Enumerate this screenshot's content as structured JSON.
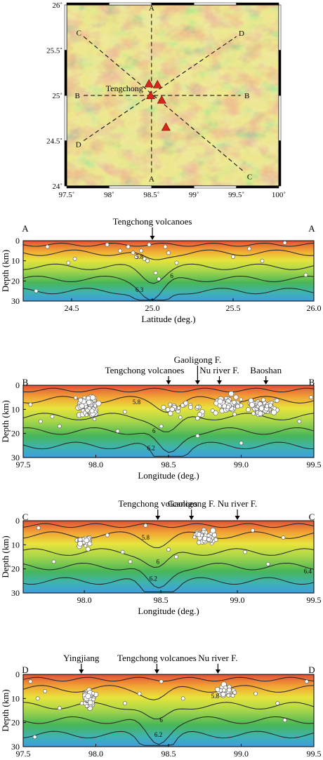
{
  "chart_data": [
    {
      "type": "map",
      "xlim": [
        97.5,
        100
      ],
      "ylim": [
        24,
        26
      ],
      "x_ticks": [
        "97.5˚",
        "98˚",
        "98.5˚",
        "99˚",
        "99.5˚",
        "100˚"
      ],
      "y_ticks": [
        "24˚",
        "24.5˚",
        "25˚",
        "25.5˚",
        "26˚"
      ],
      "place_label": "Tengchong",
      "volcanoes": [
        {
          "lon": 98.47,
          "lat": 25.13
        },
        {
          "lon": 98.57,
          "lat": 25.12
        },
        {
          "lon": 98.49,
          "lat": 25.0
        },
        {
          "lon": 98.62,
          "lat": 24.95
        },
        {
          "lon": 98.67,
          "lat": 24.65
        }
      ],
      "profiles": [
        {
          "start_label": "A",
          "end_label": "A",
          "start": [
            98.5,
            24.15
          ],
          "end": [
            98.5,
            25.9
          ]
        },
        {
          "start_label": "B",
          "end_label": "B",
          "start": [
            97.7,
            25.0
          ],
          "end": [
            99.55,
            25.0
          ]
        },
        {
          "start_label": "C",
          "end_label": "C",
          "start": [
            97.7,
            25.65
          ],
          "end": [
            99.6,
            24.15
          ]
        },
        {
          "start_label": "D",
          "end_label": "D",
          "start": [
            97.7,
            24.5
          ],
          "end": [
            99.5,
            25.65
          ]
        }
      ]
    },
    {
      "type": "heatmap",
      "profile": "A",
      "left_label": "A",
      "right_label": "A",
      "xlabel": "Latitude (deg.)",
      "ylabel": "Depth (km)",
      "xlim": [
        24.2,
        26.0
      ],
      "ylim": [
        0,
        30
      ],
      "x_ticks": [
        "24.5",
        "25.0",
        "25.5",
        "26.0"
      ],
      "x_tick_values": [
        24.5,
        25.0,
        25.5,
        26.0
      ],
      "y_ticks": [
        "0",
        "10",
        "20",
        "30"
      ],
      "y_tick_values": [
        0,
        10,
        20,
        30
      ],
      "contour_labels": [
        {
          "text": "5.8",
          "x": 24.92,
          "y": 8
        },
        {
          "text": "6",
          "x": 25.12,
          "y": 17.5
        },
        {
          "text": "6.3",
          "x": 24.92,
          "y": 24.5
        }
      ],
      "annotations": [
        {
          "text": "Tengchong volcanoes",
          "x": 25.0
        }
      ],
      "earthquakes": [
        {
          "x": 24.28,
          "y": 25
        },
        {
          "x": 24.35,
          "y": 3
        },
        {
          "x": 24.48,
          "y": 11
        },
        {
          "x": 24.52,
          "y": 9
        },
        {
          "x": 24.72,
          "y": 2
        },
        {
          "x": 24.8,
          "y": 5
        },
        {
          "x": 24.85,
          "y": 3
        },
        {
          "x": 24.88,
          "y": 6
        },
        {
          "x": 24.9,
          "y": 8
        },
        {
          "x": 24.93,
          "y": 5
        },
        {
          "x": 24.95,
          "y": 9
        },
        {
          "x": 24.97,
          "y": 10
        },
        {
          "x": 24.98,
          "y": 2
        },
        {
          "x": 25.02,
          "y": 16
        },
        {
          "x": 25.04,
          "y": 19
        },
        {
          "x": 25.08,
          "y": 3
        },
        {
          "x": 25.1,
          "y": 6
        },
        {
          "x": 25.15,
          "y": 11
        },
        {
          "x": 25.5,
          "y": 8
        },
        {
          "x": 25.6,
          "y": 4
        },
        {
          "x": 25.68,
          "y": 10
        },
        {
          "x": 25.82,
          "y": 1
        },
        {
          "x": 25.95,
          "y": 17
        }
      ]
    },
    {
      "type": "heatmap",
      "profile": "B",
      "left_label": "B",
      "right_label": "B",
      "xlabel": "Longitude (deg.)",
      "ylabel": "Depth (km)",
      "xlim": [
        97.5,
        99.5
      ],
      "ylim": [
        0,
        30
      ],
      "x_ticks": [
        "97.5",
        "98.0",
        "98.5",
        "99.0",
        "99.5"
      ],
      "x_tick_values": [
        97.5,
        98.0,
        98.5,
        99.0,
        99.5
      ],
      "y_ticks": [
        "0",
        "10",
        "20",
        "30"
      ],
      "y_tick_values": [
        0,
        10,
        20,
        30
      ],
      "contour_labels": [
        {
          "text": "5.8",
          "x": 98.28,
          "y": 7
        },
        {
          "text": "6",
          "x": 98.4,
          "y": 19
        },
        {
          "text": "6.2",
          "x": 98.38,
          "y": 26
        }
      ],
      "annotations": [
        {
          "text": "Tengchong volcanoes",
          "x": 98.5
        },
        {
          "text": "Gaoligong F.",
          "x": 98.7
        },
        {
          "text": "Nu river F.",
          "x": 98.85
        },
        {
          "text": "Baoshan",
          "x": 99.17
        }
      ],
      "earthquake_clusters": [
        {
          "x_center": 97.95,
          "x_spread": 0.1,
          "y_center": 9,
          "y_spread": 6,
          "count": 90
        },
        {
          "x_center": 98.9,
          "x_spread": 0.12,
          "y_center": 8,
          "y_spread": 5,
          "count": 60
        },
        {
          "x_center": 99.15,
          "x_spread": 0.14,
          "y_center": 9,
          "y_spread": 5,
          "count": 70
        },
        {
          "x_center": 98.6,
          "x_spread": 0.2,
          "y_center": 10,
          "y_spread": 6,
          "count": 25
        }
      ],
      "earthquakes": [
        {
          "x": 97.55,
          "y": 8
        },
        {
          "x": 97.62,
          "y": 15
        },
        {
          "x": 97.7,
          "y": 13
        },
        {
          "x": 97.75,
          "y": 17
        },
        {
          "x": 98.15,
          "y": 19
        },
        {
          "x": 98.2,
          "y": 11
        },
        {
          "x": 98.45,
          "y": 17
        },
        {
          "x": 98.7,
          "y": 21
        },
        {
          "x": 99.0,
          "y": 24
        },
        {
          "x": 99.4,
          "y": 15
        },
        {
          "x": 99.48,
          "y": 5
        }
      ]
    },
    {
      "type": "heatmap",
      "profile": "C",
      "left_label": "C",
      "right_label": "C",
      "xlabel": "Longitude (deg.)",
      "ylabel": "Depth (km)",
      "xlim": [
        97.6,
        99.5
      ],
      "ylim": [
        0,
        30
      ],
      "x_ticks": [
        "98.0",
        "98.5",
        "99.0",
        "99.5"
      ],
      "x_tick_values": [
        98.0,
        98.5,
        99.0,
        99.5
      ],
      "y_ticks": [
        "0",
        "10",
        "20",
        "30"
      ],
      "y_tick_values": [
        0,
        10,
        20,
        30
      ],
      "contour_labels": [
        {
          "text": "5.8",
          "x": 98.4,
          "y": 7
        },
        {
          "text": "6",
          "x": 98.48,
          "y": 17
        },
        {
          "text": "6.2",
          "x": 98.45,
          "y": 24
        },
        {
          "text": "6.4",
          "x": 99.46,
          "y": 21
        }
      ],
      "annotations": [
        {
          "text": "Tengchong volcanoes",
          "x": 98.48
        },
        {
          "text": "Gaoligong F.",
          "x": 98.7
        },
        {
          "text": "Nu river F.",
          "x": 99.0
        }
      ],
      "earthquake_clusters": [
        {
          "x_center": 98.0,
          "x_spread": 0.06,
          "y_center": 9,
          "y_spread": 4,
          "count": 25
        },
        {
          "x_center": 98.8,
          "x_spread": 0.12,
          "y_center": 7,
          "y_spread": 4,
          "count": 55
        }
      ],
      "earthquakes": [
        {
          "x": 97.7,
          "y": 3
        },
        {
          "x": 97.8,
          "y": 17
        },
        {
          "x": 98.15,
          "y": 6
        },
        {
          "x": 98.25,
          "y": 13
        },
        {
          "x": 98.3,
          "y": 17
        },
        {
          "x": 98.4,
          "y": 2
        },
        {
          "x": 98.55,
          "y": 12
        },
        {
          "x": 98.6,
          "y": 15
        },
        {
          "x": 99.05,
          "y": 13
        },
        {
          "x": 99.1,
          "y": 4
        },
        {
          "x": 99.2,
          "y": 18
        },
        {
          "x": 99.3,
          "y": 7
        }
      ]
    },
    {
      "type": "heatmap",
      "profile": "D",
      "left_label": "D",
      "right_label": "D",
      "xlabel": "Longitude (deg.)",
      "ylabel": "Depth (km)",
      "xlim": [
        97.5,
        99.5
      ],
      "ylim": [
        0,
        30
      ],
      "x_ticks": [
        "97.5",
        "98.0",
        "98.5",
        "99.0",
        "99.5"
      ],
      "x_tick_values": [
        97.5,
        98.0,
        98.5,
        99.0,
        99.5
      ],
      "y_ticks": [
        "0",
        "10",
        "20",
        "30"
      ],
      "y_tick_values": [
        0,
        10,
        20,
        30
      ],
      "contour_labels": [
        {
          "text": "5.8",
          "x": 98.82,
          "y": 9
        },
        {
          "text": "6",
          "x": 98.45,
          "y": 19
        },
        {
          "text": "6.2",
          "x": 98.43,
          "y": 25
        }
      ],
      "annotations": [
        {
          "text": "Yingjiang",
          "x": 97.9
        },
        {
          "text": "Tengchong volcanoes",
          "x": 98.42
        },
        {
          "text": "Nu river F.",
          "x": 98.84
        }
      ],
      "earthquake_clusters": [
        {
          "x_center": 97.95,
          "x_spread": 0.07,
          "y_center": 10,
          "y_spread": 5,
          "count": 55
        },
        {
          "x_center": 98.9,
          "x_spread": 0.1,
          "y_center": 7,
          "y_spread": 4,
          "count": 30
        }
      ],
      "earthquakes": [
        {
          "x": 97.55,
          "y": 3
        },
        {
          "x": 97.6,
          "y": 10
        },
        {
          "x": 97.65,
          "y": 7
        },
        {
          "x": 97.58,
          "y": 26
        },
        {
          "x": 97.75,
          "y": 14
        },
        {
          "x": 98.2,
          "y": 12
        },
        {
          "x": 98.3,
          "y": 8
        },
        {
          "x": 98.45,
          "y": 3
        },
        {
          "x": 98.6,
          "y": 10
        },
        {
          "x": 99.1,
          "y": 8
        },
        {
          "x": 99.25,
          "y": 12
        },
        {
          "x": 99.45,
          "y": 3
        },
        {
          "x": 99.3,
          "y": 19
        }
      ]
    }
  ]
}
